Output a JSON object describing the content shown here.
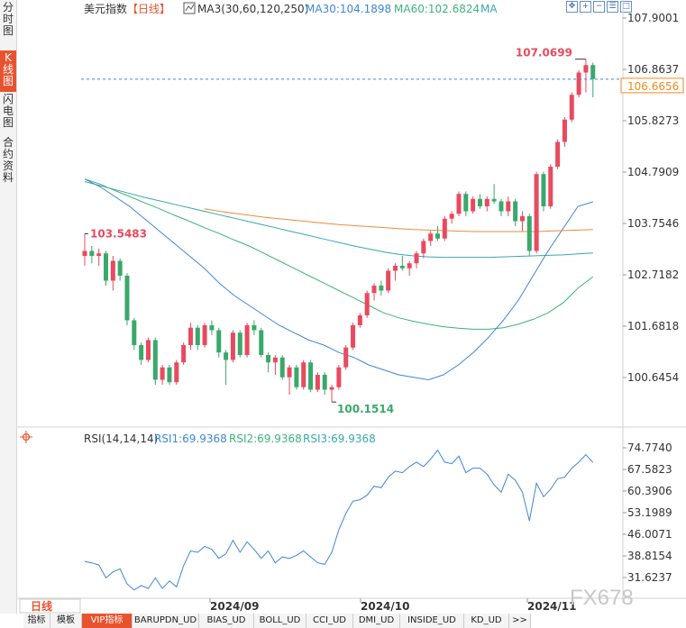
{
  "side_tabs": [
    {
      "label": "分时图",
      "active": false
    },
    {
      "label": "K线图",
      "active": true
    },
    {
      "label": "闪电图",
      "active": false
    },
    {
      "label": "合约资料",
      "active": false
    }
  ],
  "header": {
    "name": "美元指数",
    "period": "【日线】",
    "ma_label": "MA3(30,60,120,250)",
    "ma30": "MA30:104.1898",
    "ma60": "MA60:102.6824",
    "ma_more": "MA"
  },
  "toolbar_icons": [
    "move-icon",
    "zoom-in-icon",
    "zoom-out-icon",
    "settings-icon",
    "maximize-icon"
  ],
  "price_axis": [
    "107.9001",
    "106.8637",
    "105.8273",
    "104.7909",
    "103.7546",
    "102.7182",
    "101.6818",
    "100.6454"
  ],
  "current_price": "106.6656",
  "annotations": {
    "high": "107.0699",
    "low": "100.1514",
    "left": "103.5483"
  },
  "rsi": {
    "label": "RSI(14,14,14)",
    "rsi1": "RSI1:69.9368",
    "rsi2": "RSI2:69.9368",
    "rsi3": "RSI3:69.9368",
    "axis": [
      "74.7740",
      "67.5823",
      "60.3906",
      "53.1989",
      "46.0071",
      "38.8154",
      "31.6237"
    ],
    "values": [
      37.0,
      36.5,
      35.8,
      31.5,
      33.5,
      34.5,
      29.5,
      27.5,
      29.0,
      28.0,
      31.5,
      28.0,
      30.5,
      28.5,
      35.5,
      40.5,
      40.0,
      42.0,
      41.0,
      38.0,
      39.5,
      44.0,
      40.0,
      43.5,
      41.0,
      38.0,
      40.5,
      36.5,
      38.5,
      38.0,
      39.0,
      40.5,
      38.5,
      36.5,
      36.0,
      40.0,
      47.5,
      53.0,
      57.0,
      57.5,
      59.0,
      62.0,
      61.5,
      65.0,
      67.0,
      66.5,
      68.5,
      70.0,
      68.5,
      71.0,
      74.0,
      70.0,
      69.5,
      72.0,
      66.5,
      68.0,
      68.0,
      66.0,
      62.5,
      60.0,
      66.0,
      64.0,
      60.0,
      50.5,
      63.0,
      58.5,
      61.0,
      64.5,
      65.0,
      68.0,
      70.0,
      72.5,
      69.9
    ]
  },
  "time_axis": {
    "period": "日线",
    "labels": [
      "2024/09",
      "2024/10",
      "2024/11"
    ]
  },
  "watermark": "FX678",
  "bottom_tabs": [
    "指标",
    "模板",
    "VIP指标",
    "BARUPDN_UD",
    "BIAS_UD",
    "BOLL_UD",
    "CCI_UD",
    "DMI_UD",
    "INSIDE_UD",
    "KD_UD",
    ">>"
  ],
  "colors": {
    "up": "#e84a5f",
    "down": "#3aa86b",
    "ma30": "#3d86d8",
    "ma60": "#3cb37a",
    "ma120": "#3aa6b0",
    "ma250": "#f08a3c",
    "rsi": "#3d86d8",
    "accent": "#e8532f",
    "price_tag": "#f08a1c"
  },
  "chart_data": {
    "type": "candlestick",
    "instrument": "美元指数",
    "period": "日线",
    "ylim": [
      100.15,
      107.9
    ],
    "candles": [
      {
        "o": 103.1,
        "h": 103.55,
        "l": 102.9,
        "c": 103.2
      },
      {
        "o": 103.2,
        "h": 103.3,
        "l": 102.95,
        "c": 103.1
      },
      {
        "o": 103.1,
        "h": 103.25,
        "l": 102.9,
        "c": 103.15
      },
      {
        "o": 103.15,
        "h": 103.2,
        "l": 102.5,
        "c": 102.6
      },
      {
        "o": 102.6,
        "h": 103.1,
        "l": 102.4,
        "c": 103.0
      },
      {
        "o": 103.0,
        "h": 103.05,
        "l": 102.6,
        "c": 102.7
      },
      {
        "o": 102.7,
        "h": 102.75,
        "l": 101.7,
        "c": 101.8
      },
      {
        "o": 101.8,
        "h": 101.85,
        "l": 101.2,
        "c": 101.3
      },
      {
        "o": 101.3,
        "h": 101.35,
        "l": 100.9,
        "c": 101.0
      },
      {
        "o": 101.0,
        "h": 101.45,
        "l": 100.95,
        "c": 101.4
      },
      {
        "o": 101.4,
        "h": 101.45,
        "l": 100.5,
        "c": 100.6
      },
      {
        "o": 100.6,
        "h": 100.9,
        "l": 100.5,
        "c": 100.85
      },
      {
        "o": 100.85,
        "h": 100.9,
        "l": 100.5,
        "c": 100.55
      },
      {
        "o": 100.55,
        "h": 101.0,
        "l": 100.5,
        "c": 100.95
      },
      {
        "o": 100.95,
        "h": 101.35,
        "l": 100.9,
        "c": 101.3
      },
      {
        "o": 101.3,
        "h": 101.75,
        "l": 101.2,
        "c": 101.65
      },
      {
        "o": 101.65,
        "h": 101.7,
        "l": 101.2,
        "c": 101.3
      },
      {
        "o": 101.3,
        "h": 101.75,
        "l": 101.25,
        "c": 101.7
      },
      {
        "o": 101.7,
        "h": 101.8,
        "l": 101.5,
        "c": 101.6
      },
      {
        "o": 101.6,
        "h": 101.65,
        "l": 101.05,
        "c": 101.15
      },
      {
        "o": 101.15,
        "h": 101.2,
        "l": 100.5,
        "c": 101.0
      },
      {
        "o": 101.0,
        "h": 101.6,
        "l": 100.95,
        "c": 101.55
      },
      {
        "o": 101.55,
        "h": 101.6,
        "l": 101.05,
        "c": 101.1
      },
      {
        "o": 101.1,
        "h": 101.75,
        "l": 101.05,
        "c": 101.7
      },
      {
        "o": 101.7,
        "h": 101.8,
        "l": 101.5,
        "c": 101.6
      },
      {
        "o": 101.6,
        "h": 101.65,
        "l": 101.05,
        "c": 101.1
      },
      {
        "o": 101.1,
        "h": 101.15,
        "l": 100.75,
        "c": 100.95
      },
      {
        "o": 100.95,
        "h": 101.1,
        "l": 100.7,
        "c": 101.05
      },
      {
        "o": 101.05,
        "h": 101.1,
        "l": 100.6,
        "c": 100.65
      },
      {
        "o": 100.65,
        "h": 100.9,
        "l": 100.3,
        "c": 100.85
      },
      {
        "o": 100.85,
        "h": 100.9,
        "l": 100.4,
        "c": 100.45
      },
      {
        "o": 100.45,
        "h": 101.0,
        "l": 100.4,
        "c": 100.95
      },
      {
        "o": 100.95,
        "h": 101.0,
        "l": 100.35,
        "c": 100.4
      },
      {
        "o": 100.4,
        "h": 100.75,
        "l": 100.35,
        "c": 100.7
      },
      {
        "o": 100.7,
        "h": 100.75,
        "l": 100.3,
        "c": 100.4
      },
      {
        "o": 100.4,
        "h": 100.5,
        "l": 100.15,
        "c": 100.45
      },
      {
        "o": 100.45,
        "h": 100.9,
        "l": 100.4,
        "c": 100.85
      },
      {
        "o": 100.85,
        "h": 101.3,
        "l": 100.8,
        "c": 101.25
      },
      {
        "o": 101.25,
        "h": 101.75,
        "l": 101.2,
        "c": 101.7
      },
      {
        "o": 101.7,
        "h": 101.95,
        "l": 101.65,
        "c": 101.9
      },
      {
        "o": 101.9,
        "h": 102.4,
        "l": 101.85,
        "c": 102.35
      },
      {
        "o": 102.35,
        "h": 102.55,
        "l": 102.2,
        "c": 102.5
      },
      {
        "o": 102.5,
        "h": 102.6,
        "l": 102.3,
        "c": 102.4
      },
      {
        "o": 102.4,
        "h": 102.85,
        "l": 102.35,
        "c": 102.8
      },
      {
        "o": 102.8,
        "h": 102.95,
        "l": 102.6,
        "c": 102.9
      },
      {
        "o": 102.9,
        "h": 103.1,
        "l": 102.8,
        "c": 102.85
      },
      {
        "o": 102.85,
        "h": 103.0,
        "l": 102.7,
        "c": 102.95
      },
      {
        "o": 102.95,
        "h": 103.2,
        "l": 102.85,
        "c": 103.15
      },
      {
        "o": 103.15,
        "h": 103.45,
        "l": 103.05,
        "c": 103.4
      },
      {
        "o": 103.4,
        "h": 103.6,
        "l": 103.3,
        "c": 103.55
      },
      {
        "o": 103.55,
        "h": 103.7,
        "l": 103.4,
        "c": 103.45
      },
      {
        "o": 103.45,
        "h": 103.9,
        "l": 103.4,
        "c": 103.85
      },
      {
        "o": 103.85,
        "h": 104.0,
        "l": 103.75,
        "c": 103.95
      },
      {
        "o": 103.95,
        "h": 104.4,
        "l": 103.9,
        "c": 104.35
      },
      {
        "o": 104.35,
        "h": 104.4,
        "l": 103.9,
        "c": 104.0
      },
      {
        "o": 104.0,
        "h": 104.3,
        "l": 103.95,
        "c": 104.25
      },
      {
        "o": 104.25,
        "h": 104.35,
        "l": 104.05,
        "c": 104.1
      },
      {
        "o": 104.1,
        "h": 104.3,
        "l": 104.0,
        "c": 104.25
      },
      {
        "o": 104.25,
        "h": 104.55,
        "l": 104.15,
        "c": 104.2
      },
      {
        "o": 104.2,
        "h": 104.25,
        "l": 103.9,
        "c": 104.0
      },
      {
        "o": 104.0,
        "h": 104.3,
        "l": 103.9,
        "c": 104.2
      },
      {
        "o": 104.2,
        "h": 104.25,
        "l": 103.7,
        "c": 103.8
      },
      {
        "o": 103.8,
        "h": 104.0,
        "l": 103.6,
        "c": 103.9
      },
      {
        "o": 103.9,
        "h": 103.95,
        "l": 103.1,
        "c": 103.2
      },
      {
        "o": 103.2,
        "h": 104.8,
        "l": 103.15,
        "c": 104.75
      },
      {
        "o": 104.75,
        "h": 104.8,
        "l": 104.0,
        "c": 104.1
      },
      {
        "o": 104.1,
        "h": 104.95,
        "l": 104.05,
        "c": 104.9
      },
      {
        "o": 104.9,
        "h": 105.45,
        "l": 104.85,
        "c": 105.4
      },
      {
        "o": 105.4,
        "h": 105.9,
        "l": 105.3,
        "c": 105.85
      },
      {
        "o": 105.85,
        "h": 106.4,
        "l": 105.8,
        "c": 106.35
      },
      {
        "o": 106.35,
        "h": 106.85,
        "l": 106.3,
        "c": 106.8
      },
      {
        "o": 106.8,
        "h": 107.07,
        "l": 106.4,
        "c": 106.95
      },
      {
        "o": 106.95,
        "h": 107.0,
        "l": 106.3,
        "c": 106.67
      }
    ],
    "ma30": [
      104.65,
      104.5,
      104.3,
      104.1,
      103.85,
      103.6,
      103.35,
      103.1,
      102.85,
      102.55,
      102.3,
      102.1,
      101.9,
      101.7,
      101.55,
      101.4,
      101.3,
      101.15,
      101.05,
      100.9,
      100.8,
      100.7,
      100.65,
      100.6,
      100.7,
      100.9,
      101.15,
      101.45,
      101.8,
      102.2,
      102.7,
      103.2,
      103.65,
      104.1,
      104.19
    ],
    "ma60": [
      104.65,
      104.55,
      104.42,
      104.3,
      104.17,
      104.05,
      103.92,
      103.8,
      103.67,
      103.55,
      103.42,
      103.3,
      103.15,
      103.0,
      102.85,
      102.7,
      102.55,
      102.4,
      102.25,
      102.1,
      101.95,
      101.85,
      101.78,
      101.72,
      101.67,
      101.64,
      101.62,
      101.62,
      101.65,
      101.72,
      101.82,
      101.95,
      102.15,
      102.45,
      102.68
    ],
    "ma120": [
      104.6,
      104.52,
      104.44,
      104.36,
      104.28,
      104.21,
      104.14,
      104.07,
      104.0,
      103.93,
      103.86,
      103.79,
      103.72,
      103.65,
      103.58,
      103.51,
      103.44,
      103.37,
      103.3,
      103.24,
      103.18,
      103.13,
      103.1,
      103.08,
      103.07,
      103.07,
      103.07,
      103.07,
      103.08,
      103.09,
      103.1,
      103.11,
      103.12,
      103.14,
      103.16
    ],
    "ma250": [
      null,
      null,
      null,
      null,
      null,
      null,
      null,
      null,
      104.05,
      104.0,
      103.96,
      103.92,
      103.88,
      103.85,
      103.82,
      103.79,
      103.76,
      103.73,
      103.71,
      103.69,
      103.67,
      103.65,
      103.63,
      103.62,
      103.61,
      103.6,
      103.59,
      103.59,
      103.59,
      103.59,
      103.59,
      103.6,
      103.61,
      103.62,
      103.63
    ]
  }
}
